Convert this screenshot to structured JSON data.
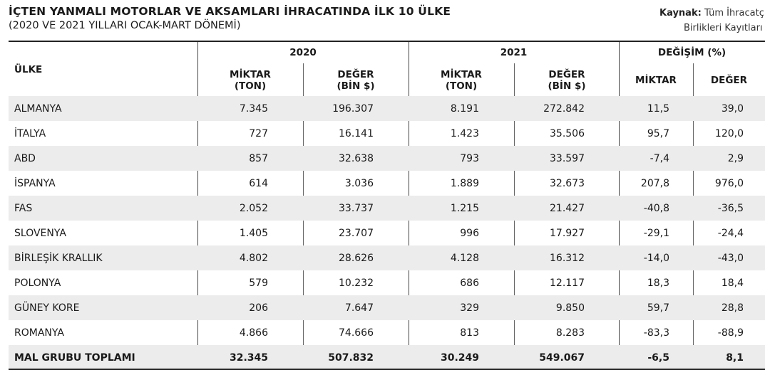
{
  "header": {
    "title": "İÇTEN YANMALI MOTORLAR VE AKSAMLARI İHRACATINDA İLK 10 ÜLKE",
    "subtitle": "(2020 VE 2021 YILLARI OCAK-MART DÖNEMİ)",
    "source_label": "Kaynak:",
    "source_line1": "Tüm İhracatç",
    "source_line2": "Birlikleri Kayıtları"
  },
  "columns": {
    "country": "ÜLKE",
    "y2020": "2020",
    "y2021": "2021",
    "change": "DEĞİŞİM (%)",
    "qty_line1": "MİKTAR",
    "qty_line2": "(TON)",
    "val_line1": "DEĞER",
    "val_line2": "(BİN $)",
    "chg_qty": "MİKTAR",
    "chg_val": "DEĞER"
  },
  "rows": [
    {
      "country": "ALMANYA",
      "q2020": "7.345",
      "v2020": "196.307",
      "q2021": "8.191",
      "v2021": "272.842",
      "cq": "11,5",
      "cv": "39,0"
    },
    {
      "country": "İTALYA",
      "q2020": "727",
      "v2020": "16.141",
      "q2021": "1.423",
      "v2021": "35.506",
      "cq": "95,7",
      "cv": "120,0"
    },
    {
      "country": "ABD",
      "q2020": "857",
      "v2020": "32.638",
      "q2021": "793",
      "v2021": "33.597",
      "cq": "-7,4",
      "cv": "2,9"
    },
    {
      "country": "İSPANYA",
      "q2020": "614",
      "v2020": "3.036",
      "q2021": "1.889",
      "v2021": "32.673",
      "cq": "207,8",
      "cv": "976,0"
    },
    {
      "country": "FAS",
      "q2020": "2.052",
      "v2020": "33.737",
      "q2021": "1.215",
      "v2021": "21.427",
      "cq": "-40,8",
      "cv": "-36,5"
    },
    {
      "country": "SLOVENYA",
      "q2020": "1.405",
      "v2020": "23.707",
      "q2021": "996",
      "v2021": "17.927",
      "cq": "-29,1",
      "cv": "-24,4"
    },
    {
      "country": "BİRLEŞİK KRALLIK",
      "q2020": "4.802",
      "v2020": "28.626",
      "q2021": "4.128",
      "v2021": "16.312",
      "cq": "-14,0",
      "cv": "-43,0"
    },
    {
      "country": "POLONYA",
      "q2020": "579",
      "v2020": "10.232",
      "q2021": "686",
      "v2021": "12.117",
      "cq": "18,3",
      "cv": "18,4"
    },
    {
      "country": "GÜNEY KORE",
      "q2020": "206",
      "v2020": "7.647",
      "q2021": "329",
      "v2021": "9.850",
      "cq": "59,7",
      "cv": "28,8"
    },
    {
      "country": "ROMANYA",
      "q2020": "4.866",
      "v2020": "74.666",
      "q2021": "813",
      "v2021": "8.283",
      "cq": "-83,3",
      "cv": "-88,9"
    },
    {
      "country": "MAL GRUBU TOPLAMI",
      "q2020": "32.345",
      "v2020": "507.832",
      "q2021": "30.249",
      "v2021": "549.067",
      "cq": "-6,5",
      "cv": "8,1"
    }
  ]
}
